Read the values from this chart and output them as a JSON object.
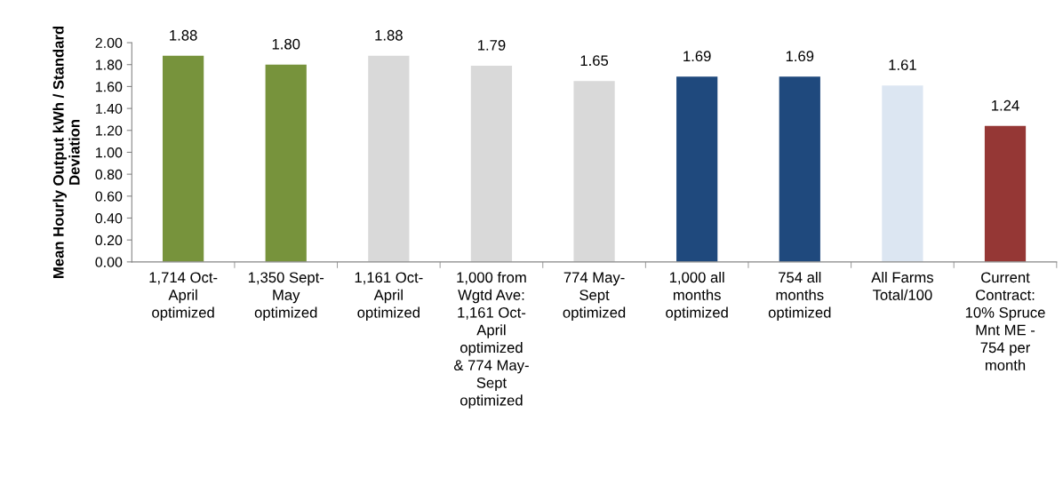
{
  "chart_data": {
    "type": "bar",
    "ylabel": "Mean Hourly Output kWh / Standard\nDeviation",
    "categories": [
      "1,714 Oct-\nApril\noptimized",
      "1,350 Sept-\nMay\noptimized",
      "1,161 Oct-\nApril\noptimized",
      "1,000 from\nWgtd Ave:\n1,161 Oct-\nApril\noptimized\n& 774 May-\nSept\noptimized",
      "774 May-\nSept\noptimized",
      "1,000 all\nmonths\noptimized",
      "754 all\nmonths\noptimized",
      "All Farms\nTotal/100",
      "Current\nContract:\n10% Spruce\nMnt ME -\n754 per\nmonth"
    ],
    "values": [
      1.88,
      1.8,
      1.88,
      1.79,
      1.65,
      1.69,
      1.69,
      1.61,
      1.24
    ],
    "colors": [
      "#77933c",
      "#77933c",
      "#d9d9d9",
      "#d9d9d9",
      "#d9d9d9",
      "#1f497d",
      "#1f497d",
      "#dce6f2",
      "#953735"
    ],
    "value_labels": [
      "1.88",
      "1.80",
      "1.88",
      "1.79",
      "1.65",
      "1.69",
      "1.69",
      "1.61",
      "1.24"
    ],
    "ylim": [
      0,
      2.0
    ],
    "yticks": [
      {
        "value": 0,
        "label": "0.00"
      },
      {
        "value": 0.2,
        "label": "0.20"
      },
      {
        "value": 0.4,
        "label": "0.40"
      },
      {
        "value": 0.6,
        "label": "0.60"
      },
      {
        "value": 0.8,
        "label": "0.80"
      },
      {
        "value": 1.0,
        "label": "1.00"
      },
      {
        "value": 1.2,
        "label": "1.20"
      },
      {
        "value": 1.4,
        "label": "1.40"
      },
      {
        "value": 1.6,
        "label": "1.60"
      },
      {
        "value": 1.8,
        "label": "1.80"
      },
      {
        "value": 2.0,
        "label": "2.00"
      }
    ],
    "grid": false,
    "legend": false
  }
}
